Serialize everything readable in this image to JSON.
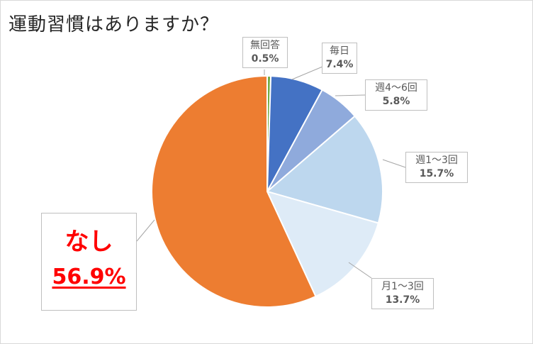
{
  "title": "運動習慣はありますか？",
  "chart_data": {
    "type": "pie",
    "title": "運動習慣はありますか？",
    "slices": [
      {
        "label": "無回答",
        "value": 0.5,
        "display": "0.5%",
        "color": "#70ad47"
      },
      {
        "label": "毎日",
        "value": 7.4,
        "display": "7.4%",
        "color": "#4472c4"
      },
      {
        "label": "週4～6回",
        "value": 5.8,
        "display": "5.8%",
        "color": "#8faadc"
      },
      {
        "label": "週1～3回",
        "value": 15.7,
        "display": "15.7%",
        "color": "#bdd7ee"
      },
      {
        "label": "月1～3回",
        "value": 13.7,
        "display": "13.7%",
        "color": "#deebf7"
      },
      {
        "label": "なし",
        "value": 56.9,
        "display": "56.9%",
        "color": "#ed7d31"
      }
    ]
  }
}
